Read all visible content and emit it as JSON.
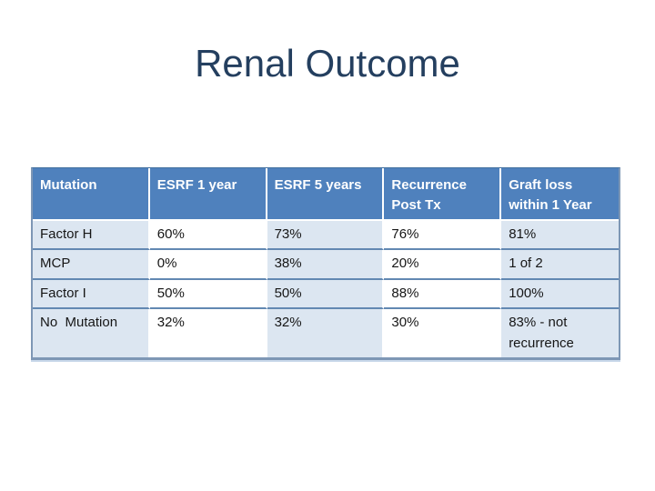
{
  "slide": {
    "title": "Renal Outcome",
    "colors": {
      "title_text": "#243f5f",
      "header_bg": "#4f81bd",
      "header_text": "#ffffff",
      "band_light": "#dce6f1",
      "band_white": "#ffffff",
      "row_separator": "#6288b2",
      "outer_border": "#7e97b5",
      "body_text": "#161616"
    },
    "table": {
      "columns": [
        "Mutation",
        "ESRF 1 year",
        "ESRF 5 years",
        "Recurrence Post Tx",
        "Graft loss within 1 Year"
      ],
      "rows": [
        [
          "Factor H",
          "60%",
          "73%",
          "76%",
          "81%"
        ],
        [
          "MCP",
          "0%",
          "38%",
          "20%",
          "1 of 2"
        ],
        [
          "Factor I",
          "50%",
          "50%",
          "88%",
          "100%"
        ],
        [
          "No  Mutation",
          "32%",
          "32%",
          "30%",
          "83% - not recurrence"
        ]
      ]
    }
  }
}
